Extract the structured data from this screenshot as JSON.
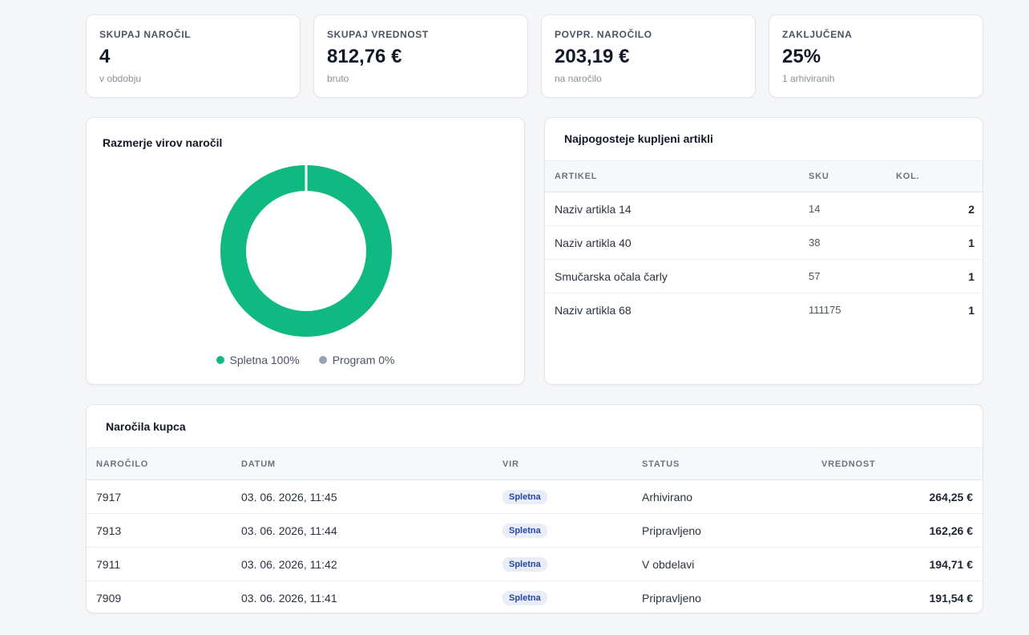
{
  "stats": [
    {
      "label": "SKUPAJ NAROČIL",
      "value": "4",
      "sub": "v obdobju"
    },
    {
      "label": "SKUPAJ VREDNOST",
      "value": "812,76 €",
      "sub": "bruto"
    },
    {
      "label": "POVPR. NAROČILO",
      "value": "203,19 €",
      "sub": "na naročilo"
    },
    {
      "label": "ZAKLJUČENA",
      "value": "25%",
      "sub": "1 arhiviranih"
    }
  ],
  "sources": {
    "title": "Razmerje virov naročil",
    "legend": [
      {
        "label": "Spletna 100%",
        "color": "#10b981",
        "percent": 100
      },
      {
        "label": "Program 0%",
        "color": "#94a3b8",
        "percent": 0
      }
    ]
  },
  "top_items": {
    "title": "Najpogosteje kupljeni artikli",
    "columns": [
      "ARTIKEL",
      "SKU",
      "KOL."
    ],
    "rows": [
      {
        "name": "Naziv artikla 14",
        "sku": "14",
        "qty": "2"
      },
      {
        "name": "Naziv artikla 40",
        "sku": "38",
        "qty": "1"
      },
      {
        "name": "Smučarska očala čarly",
        "sku": "57",
        "qty": "1"
      },
      {
        "name": "Naziv artikla 68",
        "sku": "111175",
        "qty": "1"
      }
    ]
  },
  "orders": {
    "title": "Naročila kupca",
    "columns": [
      "NAROČILO",
      "DATUM",
      "VIR",
      "STATUS",
      "VREDNOST"
    ],
    "rows": [
      {
        "id": "7917",
        "date": "03. 06. 2026, 11:45",
        "source": "Spletna",
        "status": "Arhivirano",
        "value": "264,25 €"
      },
      {
        "id": "7913",
        "date": "03. 06. 2026, 11:44",
        "source": "Spletna",
        "status": "Pripravljeno",
        "value": "162,26 €"
      },
      {
        "id": "7911",
        "date": "03. 06. 2026, 11:42",
        "source": "Spletna",
        "status": "V obdelavi",
        "value": "194,71 €"
      },
      {
        "id": "7909",
        "date": "03. 06. 2026, 11:41",
        "source": "Spletna",
        "status": "Pripravljeno",
        "value": "191,54 €"
      }
    ]
  }
}
